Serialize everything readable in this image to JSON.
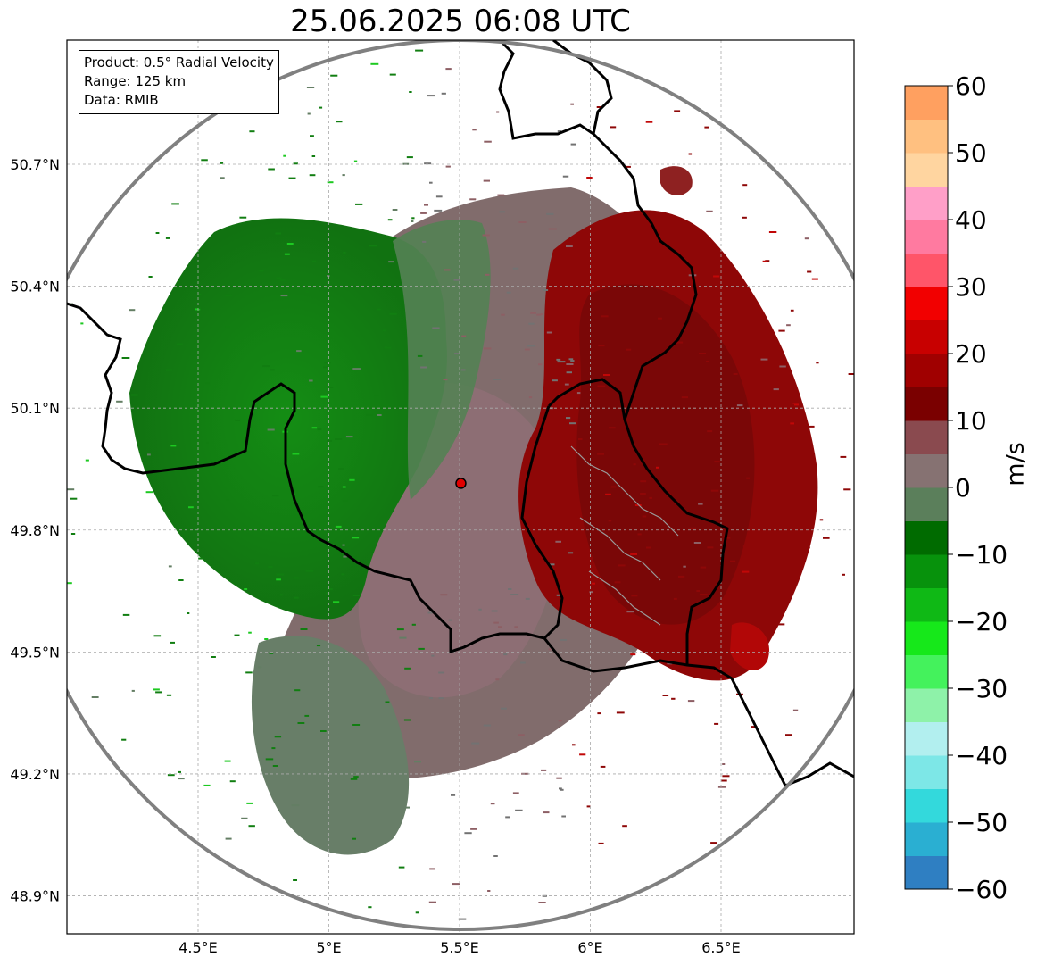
{
  "title": "25.06.2025 06:08 UTC",
  "info_box": {
    "product": "Product: 0.5° Radial Velocity",
    "range": "Range: 125 km",
    "data": "Data: RMIB"
  },
  "map": {
    "lon_range": [
      4.0,
      7.0
    ],
    "lat_range": [
      48.8,
      51.0
    ],
    "lon_ticks": [
      {
        "value": 4.5,
        "label": "4.5°E"
      },
      {
        "value": 5.0,
        "label": "5°E"
      },
      {
        "value": 5.5,
        "label": "5.5°E"
      },
      {
        "value": 6.0,
        "label": "6°E"
      },
      {
        "value": 6.5,
        "label": "6.5°E"
      }
    ],
    "lat_ticks": [
      {
        "value": 50.7,
        "label": "50.7°N"
      },
      {
        "value": 50.4,
        "label": "50.4°N"
      },
      {
        "value": 50.1,
        "label": "50.1°N"
      },
      {
        "value": 49.8,
        "label": "49.8°N"
      },
      {
        "value": 49.5,
        "label": "49.5°N"
      },
      {
        "value": 49.2,
        "label": "49.2°N"
      },
      {
        "value": 48.9,
        "label": "48.9°N"
      }
    ],
    "grid": "on",
    "radar_site": {
      "lon": 5.505,
      "lat": 49.915
    },
    "range_km": 125
  },
  "colorbar": {
    "label": "m/s",
    "range": [
      -60,
      60
    ],
    "ticks": [
      60,
      50,
      40,
      30,
      20,
      10,
      0,
      -10,
      -20,
      -30,
      -40,
      -50,
      -60
    ],
    "tick_labels": [
      "60",
      "50",
      "40",
      "30",
      "20",
      "10",
      "0",
      "−10",
      "−20",
      "−30",
      "−40",
      "−50",
      "−60"
    ],
    "bins": [
      {
        "from": -60,
        "to": -55,
        "color": "#2f7fc2"
      },
      {
        "from": -55,
        "to": -50,
        "color": "#2aafd2"
      },
      {
        "from": -50,
        "to": -45,
        "color": "#33d9dc"
      },
      {
        "from": -45,
        "to": -40,
        "color": "#7de7e7"
      },
      {
        "from": -40,
        "to": -35,
        "color": "#b2efef"
      },
      {
        "from": -35,
        "to": -30,
        "color": "#8ef2a9"
      },
      {
        "from": -30,
        "to": -25,
        "color": "#44f25c"
      },
      {
        "from": -25,
        "to": -20,
        "color": "#16e81a"
      },
      {
        "from": -20,
        "to": -15,
        "color": "#0fb915"
      },
      {
        "from": -15,
        "to": -10,
        "color": "#07920c"
      },
      {
        "from": -10,
        "to": -5,
        "color": "#006b00"
      },
      {
        "from": -5,
        "to": 0,
        "color": "#5b7f5b"
      },
      {
        "from": 0,
        "to": 5,
        "color": "#867272"
      },
      {
        "from": 5,
        "to": 10,
        "color": "#8a4a4f"
      },
      {
        "from": 10,
        "to": 15,
        "color": "#7a0000"
      },
      {
        "from": 15,
        "to": 20,
        "color": "#a00000"
      },
      {
        "from": 20,
        "to": 25,
        "color": "#c80000"
      },
      {
        "from": 25,
        "to": 30,
        "color": "#f20000"
      },
      {
        "from": 30,
        "to": 35,
        "color": "#ff5569"
      },
      {
        "from": 35,
        "to": 40,
        "color": "#ff7aa0"
      },
      {
        "from": 40,
        "to": 45,
        "color": "#ff9fc8"
      },
      {
        "from": 45,
        "to": 50,
        "color": "#ffd5a0"
      },
      {
        "from": 50,
        "to": 55,
        "color": "#ffc080"
      },
      {
        "from": 55,
        "to": 60,
        "color": "#ffa060"
      }
    ]
  },
  "velocity_field": {
    "inbound_color": "#0a7a0a",
    "near_zero_color": "#7a7272",
    "outbound_color": "#8a0a0a"
  }
}
